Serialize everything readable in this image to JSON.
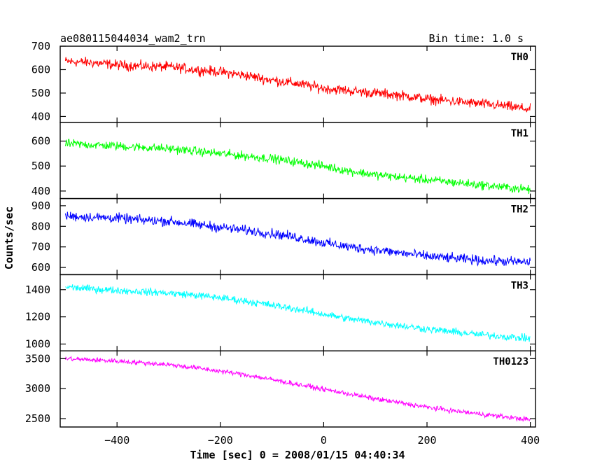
{
  "chart_data": {
    "type": "line",
    "title": "ae080115044034_wam2_trn",
    "subtitle": "Bin time: 1.0 s",
    "xlabel": "Time [sec] 0 = 2008/01/15 04:40:34",
    "ylabel": "Counts/sec",
    "xlim": [
      -510,
      410
    ],
    "x_ticks": [
      -400,
      -200,
      0,
      200,
      400
    ],
    "x_sample": [
      -500,
      -450,
      -400,
      -350,
      -300,
      -250,
      -200,
      -150,
      -100,
      -50,
      0,
      50,
      100,
      150,
      200,
      250,
      300,
      350,
      400
    ],
    "series": [
      {
        "name": "TH0",
        "color": "#ff0000",
        "ylim": [
          375,
          700
        ],
        "y_ticks": [
          400,
          500,
          600,
          700
        ],
        "values": [
          635,
          630,
          620,
          615,
          612,
          600,
          590,
          575,
          555,
          540,
          520,
          510,
          500,
          490,
          475,
          465,
          455,
          445,
          430
        ],
        "noise": 32
      },
      {
        "name": "TH1",
        "color": "#00ff00",
        "ylim": [
          370,
          675
        ],
        "y_ticks": [
          400,
          500,
          600
        ],
        "values": [
          590,
          585,
          580,
          575,
          570,
          560,
          550,
          540,
          530,
          515,
          500,
          480,
          465,
          455,
          445,
          435,
          425,
          415,
          405
        ],
        "noise": 26
      },
      {
        "name": "TH2",
        "color": "#0000ff",
        "ylim": [
          565,
          935
        ],
        "y_ticks": [
          600,
          700,
          800,
          900
        ],
        "values": [
          850,
          845,
          840,
          830,
          825,
          810,
          795,
          780,
          765,
          745,
          720,
          700,
          685,
          670,
          655,
          645,
          635,
          630,
          625
        ],
        "noise": 35
      },
      {
        "name": "TH3",
        "color": "#00ffff",
        "ylim": [
          950,
          1510
        ],
        "y_ticks": [
          1000,
          1200,
          1400
        ],
        "values": [
          1420,
          1405,
          1395,
          1385,
          1375,
          1360,
          1340,
          1315,
          1285,
          1255,
          1220,
          1185,
          1160,
          1135,
          1110,
          1090,
          1070,
          1055,
          1040
        ],
        "noise": 40
      },
      {
        "name": "TH0123",
        "color": "#ff00ff",
        "ylim": [
          2360,
          3630
        ],
        "y_ticks": [
          2500,
          3000,
          3500
        ],
        "values": [
          3500,
          3480,
          3460,
          3430,
          3400,
          3350,
          3290,
          3230,
          3150,
          3070,
          2990,
          2910,
          2830,
          2760,
          2690,
          2630,
          2580,
          2530,
          2480
        ],
        "noise": 60
      }
    ]
  }
}
